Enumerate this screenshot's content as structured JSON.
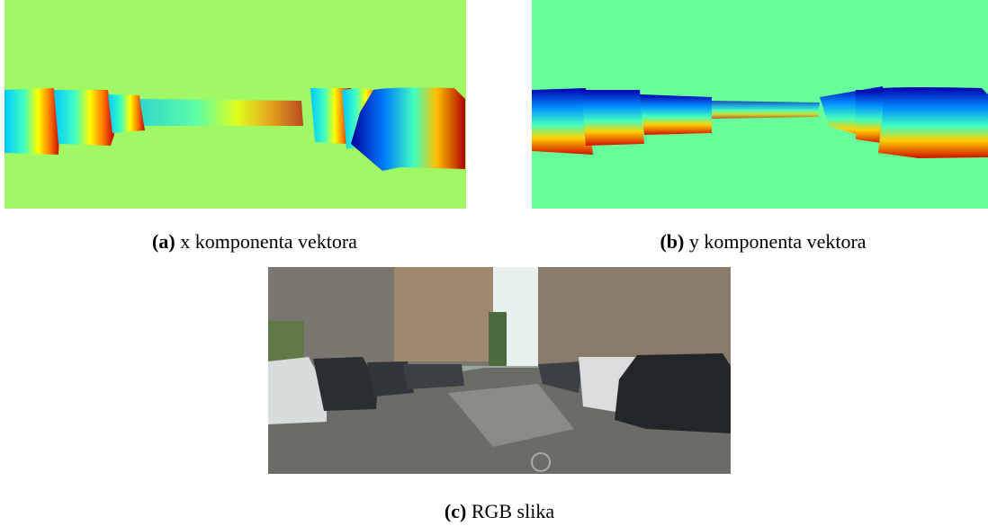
{
  "figures": [
    {
      "label": "(a)",
      "caption": "x komponenta vektora"
    },
    {
      "label": "(b)",
      "caption": "y komponenta vektora"
    },
    {
      "label": "(c)",
      "caption": "RGB slika"
    }
  ]
}
